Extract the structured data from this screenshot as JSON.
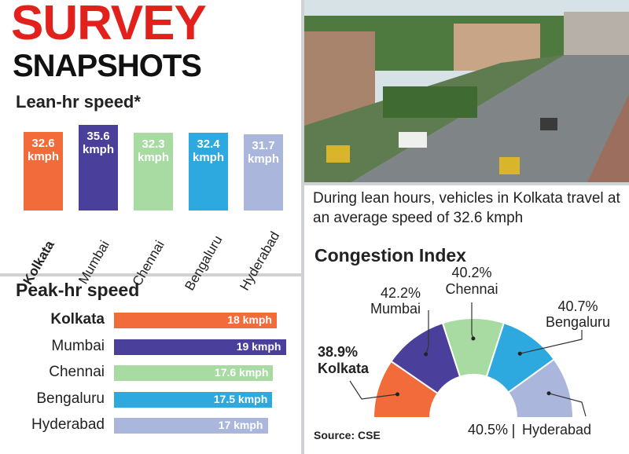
{
  "header": {
    "title": "SURVEY",
    "subtitle": "SNAPSHOTS"
  },
  "caption": "During lean hours, vehicles in Kolkata travel at an average speed of 32.6 kmph",
  "source": "Source: CSE",
  "chart_data": [
    {
      "type": "bar",
      "orientation": "vertical",
      "title": "Lean-hr speed*",
      "categories": [
        "Kolkata",
        "Mumbai",
        "Chennai",
        "Bengaluru",
        "Hyderabad"
      ],
      "values": [
        32.6,
        35.6,
        32.3,
        32.4,
        31.7
      ],
      "value_labels": [
        "32.6 kmph",
        "35.6 kmph",
        "32.3 kmph",
        "32.4 kmph",
        "31.7 kmph"
      ],
      "colors": [
        "#f26b3a",
        "#4b3f9c",
        "#a8dba2",
        "#2ea9e0",
        "#aab6dc"
      ]
    },
    {
      "type": "bar",
      "orientation": "horizontal",
      "title": "Peak-hr speed",
      "categories": [
        "Kolkata",
        "Mumbai",
        "Chennai",
        "Bengaluru",
        "Hyderabad"
      ],
      "values": [
        18,
        19,
        17.6,
        17.5,
        17
      ],
      "value_labels": [
        "18 kmph",
        "19 kmph",
        "17.6 kmph",
        "17.5 kmph",
        "17 kmph"
      ],
      "colors": [
        "#f26b3a",
        "#4b3f9c",
        "#a8dba2",
        "#2ea9e0",
        "#aab6dc"
      ]
    },
    {
      "type": "pie",
      "half": true,
      "title": "Congestion Index",
      "categories": [
        "Kolkata",
        "Mumbai",
        "Chennai",
        "Bengaluru",
        "Hyderabad"
      ],
      "values": [
        38.9,
        42.2,
        40.2,
        40.7,
        40.5
      ],
      "value_labels": [
        "38.9%",
        "42.2%",
        "40.2%",
        "40.7%",
        "40.5%"
      ],
      "colors": [
        "#f26b3a",
        "#4b3f9c",
        "#a8dba2",
        "#2ea9e0",
        "#aab6dc"
      ]
    }
  ]
}
